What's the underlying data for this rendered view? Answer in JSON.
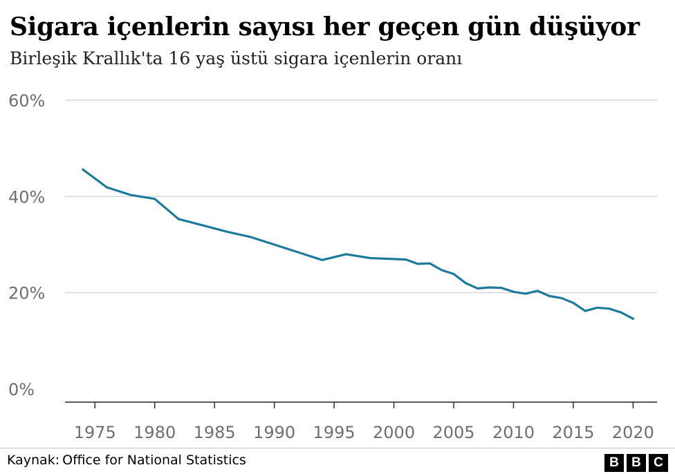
{
  "title": "Sigara içenlerin sayısı her geçen gün düşüyor",
  "subtitle": "Birleşik Krallık'ta 16 yaş üstü sigara içenlerin oranı",
  "source": {
    "label": "Kaynak:",
    "text": "Office for National Statistics"
  },
  "logo": [
    "B",
    "B",
    "C"
  ],
  "colors": {
    "line": "#1c7a9c",
    "grid": "#cccccc",
    "axis": "#222222",
    "tick_text": "#6f6f6f"
  },
  "chart_data": {
    "type": "line",
    "title": "Sigara içenlerin sayısı her geçen gün düşüyor",
    "subtitle": "Birleşik Krallık'ta 16 yaş üstü sigara içenlerin oranı",
    "xlabel": "",
    "ylabel": "",
    "x_ticks": [
      1975,
      1980,
      1985,
      1990,
      1995,
      2000,
      2005,
      2010,
      2015,
      2020
    ],
    "y_ticks": [
      0,
      20,
      40,
      60
    ],
    "y_tick_labels": [
      "0%",
      "20%",
      "40%",
      "60%"
    ],
    "xlim": [
      1972.5,
      2022
    ],
    "ylim": [
      0,
      60
    ],
    "grid": true,
    "x": [
      1974,
      1976,
      1978,
      1980,
      1982,
      1984,
      1986,
      1988,
      1990,
      1992,
      1994,
      1996,
      1998,
      2000,
      2001,
      2002,
      2003,
      2004,
      2005,
      2006,
      2007,
      2008,
      2009,
      2010,
      2011,
      2012,
      2013,
      2014,
      2015,
      2016,
      2017,
      2018,
      2019,
      2020
    ],
    "series": [
      {
        "values": [
          45.6,
          41.9,
          40.3,
          39.5,
          35.3,
          34.0,
          32.7,
          31.6,
          30.0,
          28.4,
          26.8,
          28.0,
          27.2,
          27.0,
          26.9,
          26.0,
          26.1,
          24.7,
          23.9,
          22.0,
          20.9,
          21.1,
          21.0,
          20.2,
          19.8,
          20.4,
          19.3,
          18.9,
          17.9,
          16.2,
          16.9,
          16.7,
          15.9,
          14.6
        ]
      }
    ]
  }
}
